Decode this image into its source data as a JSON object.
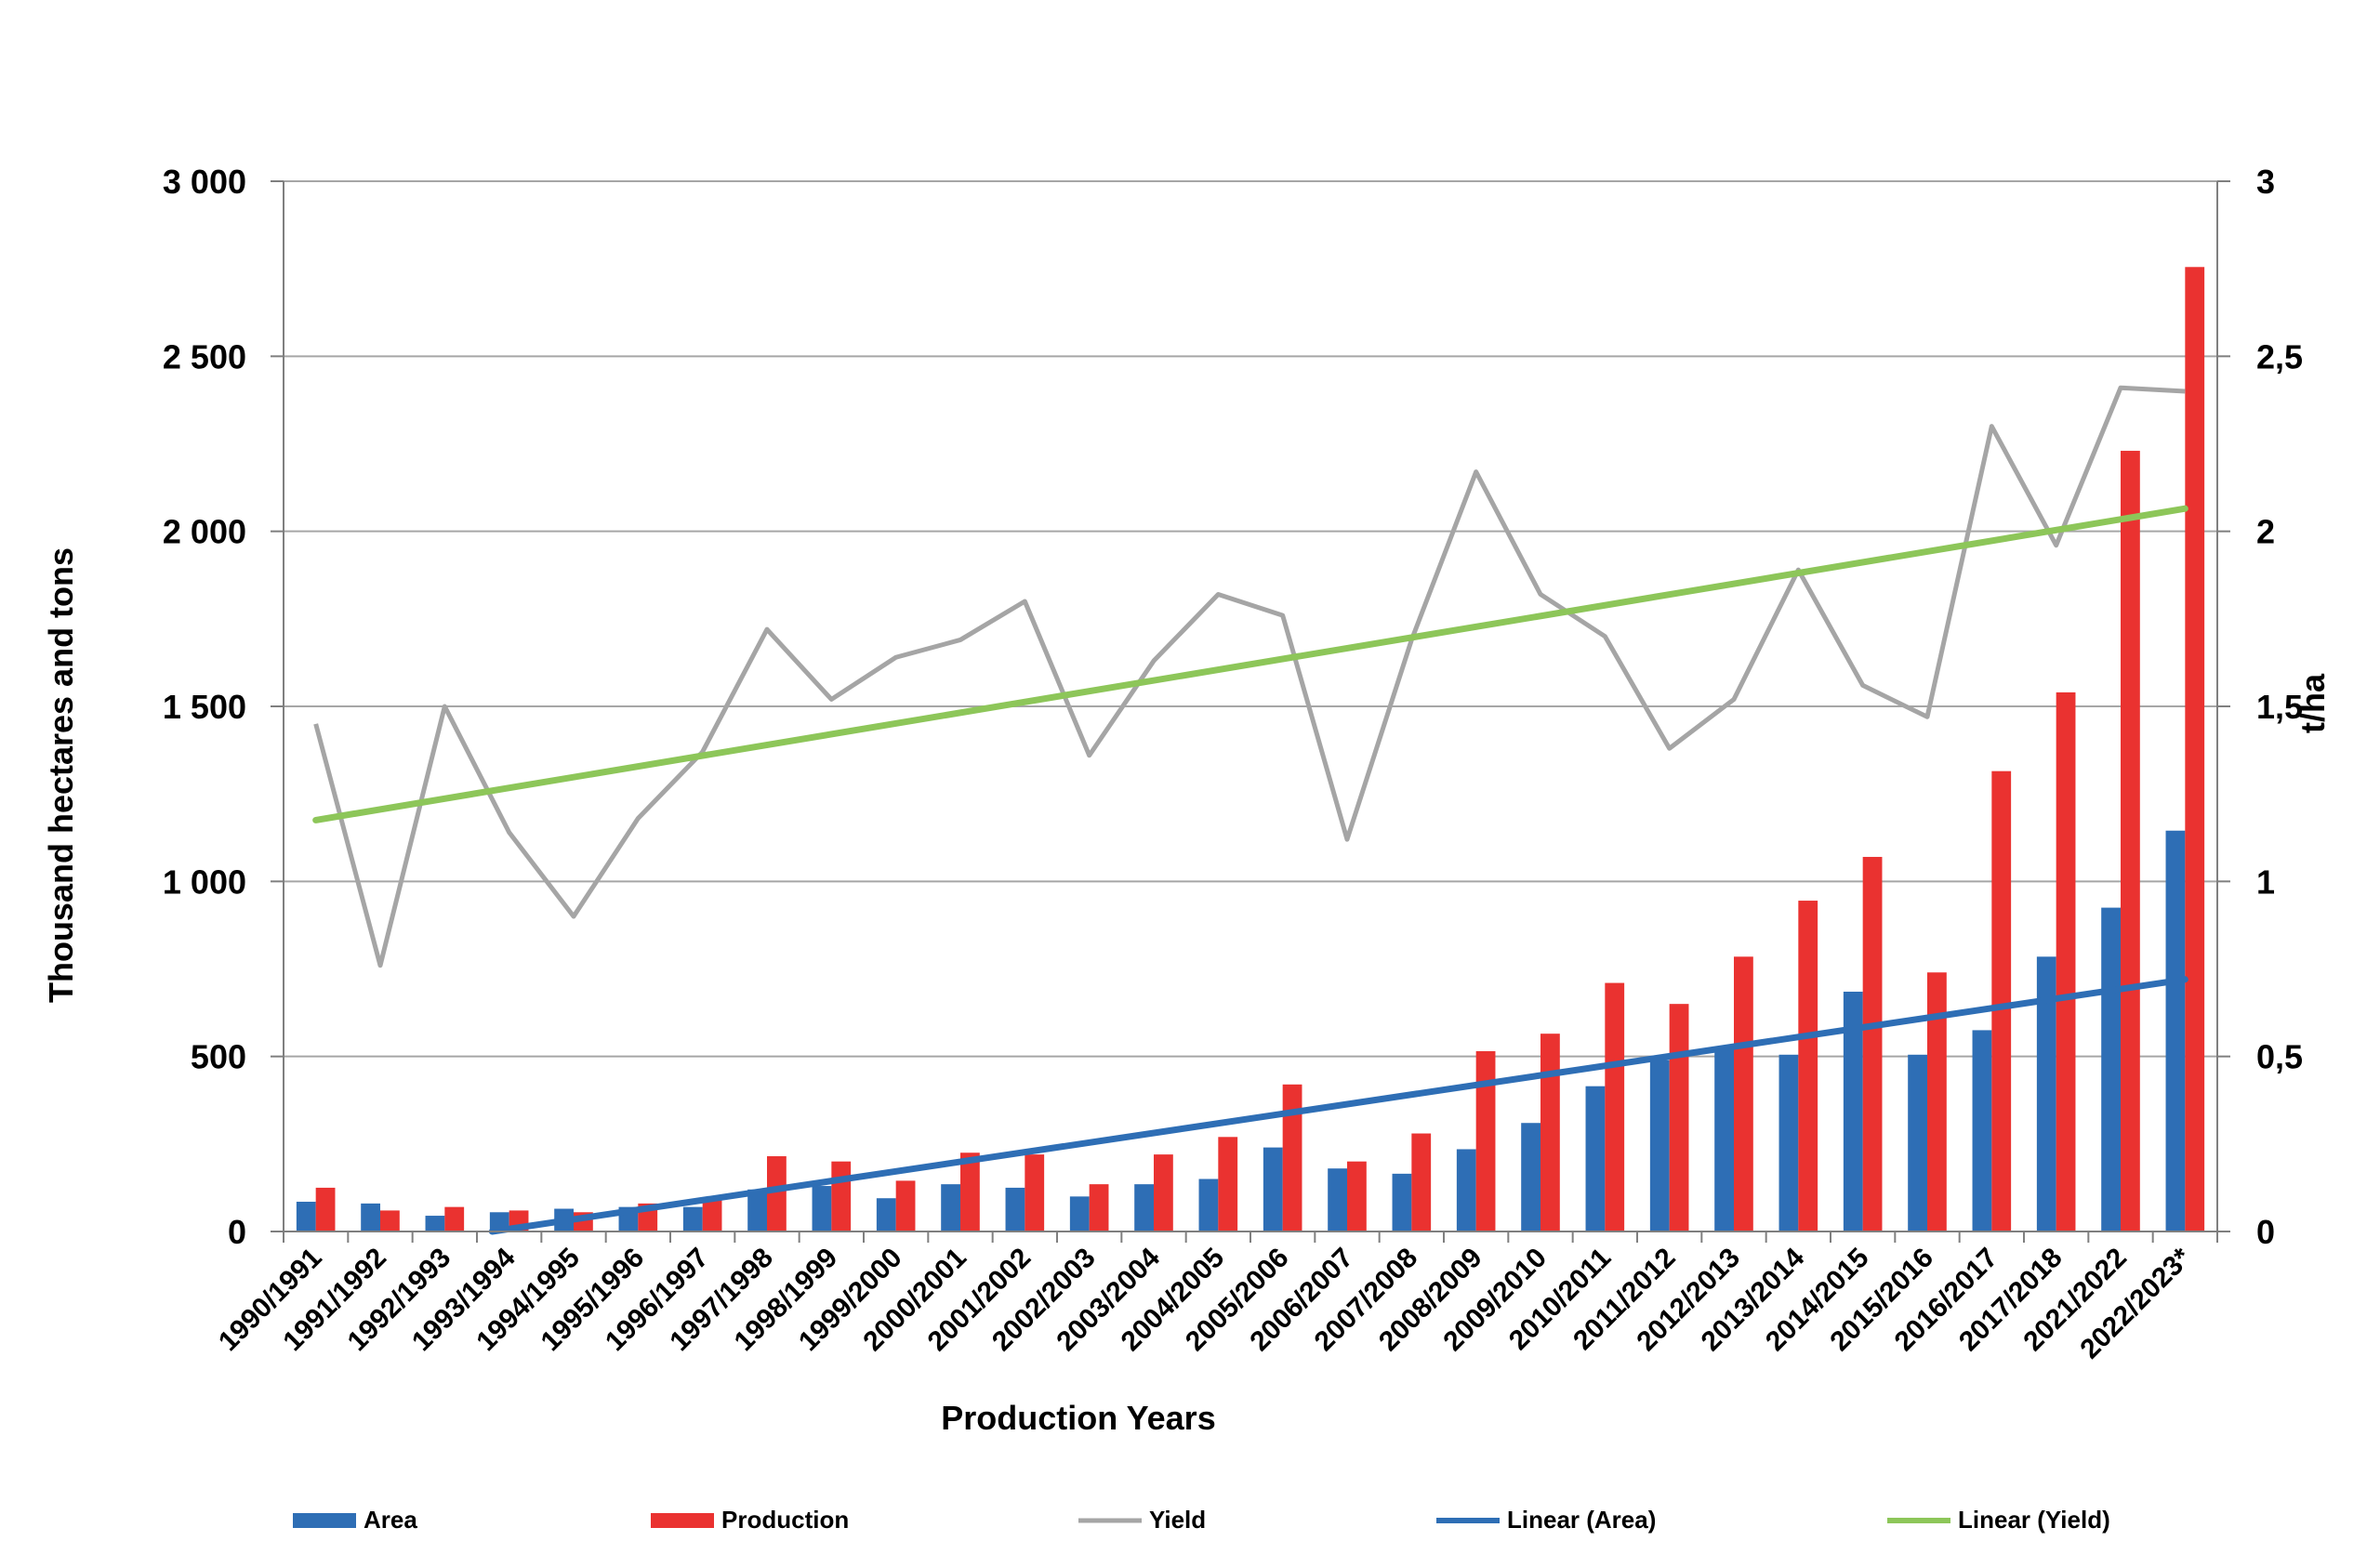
{
  "chart_data": {
    "type": "bar",
    "categories": [
      "1990/1991",
      "1991/1992",
      "1992/1993",
      "1993/1994",
      "1994/1995",
      "1995/1996",
      "1996/1997",
      "1997/1998",
      "1998/1999",
      "1999/2000",
      "2000/2001",
      "2001/2002",
      "2002/2003",
      "2003/2004",
      "2004/2005",
      "2005/2006",
      "2006/2007",
      "2007/2008",
      "2008/2009",
      "2009/2010",
      "2010/2011",
      "2011/2012",
      "2012/2013",
      "2013/2014",
      "2014/2015",
      "2015/2016",
      "2016/2017",
      "2017/2018",
      "2021/2022",
      "2022/2023*"
    ],
    "series": [
      {
        "name": "Area",
        "type": "bar",
        "axis": "left",
        "color": "#2E6EB5",
        "values": [
          85,
          80,
          45,
          55,
          65,
          70,
          70,
          120,
          130,
          95,
          135,
          125,
          100,
          135,
          150,
          240,
          180,
          165,
          235,
          310,
          415,
          490,
          520,
          505,
          685,
          505,
          575,
          785,
          925,
          1145
        ]
      },
      {
        "name": "Production",
        "type": "bar",
        "axis": "left",
        "color": "#EA3230",
        "values": [
          125,
          60,
          70,
          60,
          55,
          80,
          95,
          215,
          200,
          145,
          225,
          220,
          135,
          220,
          270,
          420,
          200,
          280,
          515,
          565,
          710,
          650,
          785,
          945,
          1070,
          740,
          1315,
          1540,
          2230,
          2755
        ]
      },
      {
        "name": "Yield",
        "type": "line",
        "axis": "right",
        "color": "#A5A5A5",
        "values": [
          1.45,
          0.76,
          1.5,
          1.14,
          0.9,
          1.18,
          1.37,
          1.72,
          1.52,
          1.64,
          1.69,
          1.8,
          1.36,
          1.63,
          1.82,
          1.76,
          1.12,
          1.69,
          2.17,
          1.82,
          1.7,
          1.38,
          1.52,
          1.89,
          1.56,
          1.47,
          2.3,
          1.96,
          2.41,
          2.4
        ]
      },
      {
        "name": "Linear (Area)",
        "type": "trendline",
        "axis": "left",
        "color": "#2E6EB5",
        "start": -75,
        "end": 720
      },
      {
        "name": "Linear (Yield)",
        "type": "trendline",
        "axis": "right",
        "color": "#8DC659",
        "start": 1.175,
        "end": 2.065
      }
    ],
    "xlabel": "Production Years",
    "ylabel": "Thousand hectares and tons",
    "y2label": "t/ha",
    "ylim": [
      0,
      3000
    ],
    "y2lim": [
      0,
      3
    ],
    "yticks": [
      "0",
      "500",
      "1 000",
      "1 500",
      "2 000",
      "2 500",
      "3 000"
    ],
    "y2ticks": [
      "0",
      "0,5",
      "1",
      "1,5",
      "2",
      "2,5",
      "3"
    ],
    "grid": true,
    "legend_position": "bottom"
  }
}
